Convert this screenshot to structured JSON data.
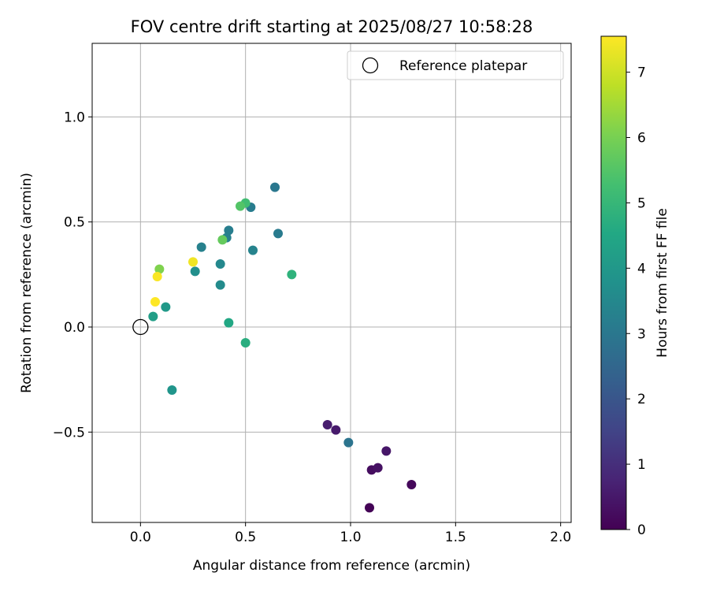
{
  "chart_data": {
    "type": "scatter",
    "title": "FOV centre drift starting at 2025/08/27 10:58:28",
    "xlabel": "Angular distance from reference (arcmin)",
    "ylabel": "Rotation from reference (arcmin)",
    "xlim": [
      -0.23,
      2.05
    ],
    "ylim": [
      -0.93,
      1.35
    ],
    "xticks": [
      0.0,
      0.5,
      1.0,
      1.5,
      2.0
    ],
    "xtick_labels": [
      "0.0",
      "0.5",
      "1.0",
      "1.5",
      "2.0"
    ],
    "yticks": [
      -0.5,
      0.0,
      0.5,
      1.0
    ],
    "ytick_labels": [
      "−0.5",
      "0.0",
      "0.5",
      "1.0"
    ],
    "grid": true,
    "legend": {
      "placement": "top-right",
      "entries": [
        {
          "label": "Reference platepar",
          "marker": "open-circle",
          "color": "#000000"
        }
      ]
    },
    "reference_point": {
      "x": 0.0,
      "y": 0.0
    },
    "colorbar": {
      "label": "Hours from first FF file",
      "min": 0,
      "max": 7.55,
      "ticks": [
        0,
        1,
        2,
        3,
        4,
        5,
        6,
        7
      ],
      "tick_labels": [
        "0",
        "1",
        "2",
        "3",
        "4",
        "5",
        "6",
        "7"
      ],
      "colormap": "viridis"
    },
    "points": [
      {
        "x": 1.09,
        "y": -0.86,
        "hours": 0.05
      },
      {
        "x": 1.29,
        "y": -0.75,
        "hours": 0.15
      },
      {
        "x": 1.1,
        "y": -0.68,
        "hours": 0.25
      },
      {
        "x": 1.13,
        "y": -0.67,
        "hours": 0.35
      },
      {
        "x": 1.17,
        "y": -0.59,
        "hours": 0.45
      },
      {
        "x": 0.93,
        "y": -0.49,
        "hours": 0.55
      },
      {
        "x": 0.89,
        "y": -0.465,
        "hours": 0.6
      },
      {
        "x": 0.99,
        "y": -0.55,
        "hours": 2.9
      },
      {
        "x": 0.64,
        "y": 0.665,
        "hours": 3.0
      },
      {
        "x": 0.655,
        "y": 0.445,
        "hours": 3.1
      },
      {
        "x": 0.525,
        "y": 0.57,
        "hours": 3.15
      },
      {
        "x": 0.42,
        "y": 0.46,
        "hours": 3.2
      },
      {
        "x": 0.41,
        "y": 0.425,
        "hours": 3.25
      },
      {
        "x": 0.29,
        "y": 0.38,
        "hours": 3.3
      },
      {
        "x": 0.535,
        "y": 0.365,
        "hours": 3.35
      },
      {
        "x": 0.38,
        "y": 0.3,
        "hours": 3.5
      },
      {
        "x": 0.38,
        "y": 0.2,
        "hours": 3.6
      },
      {
        "x": 0.26,
        "y": 0.265,
        "hours": 3.7
      },
      {
        "x": 0.15,
        "y": -0.3,
        "hours": 3.9
      },
      {
        "x": 0.12,
        "y": 0.095,
        "hours": 4.05
      },
      {
        "x": 0.06,
        "y": 0.05,
        "hours": 4.2
      },
      {
        "x": 0.42,
        "y": 0.02,
        "hours": 4.5
      },
      {
        "x": 0.5,
        "y": -0.075,
        "hours": 4.7
      },
      {
        "x": 0.72,
        "y": 0.25,
        "hours": 4.85
      },
      {
        "x": 0.5,
        "y": 0.59,
        "hours": 5.2
      },
      {
        "x": 0.475,
        "y": 0.575,
        "hours": 5.5
      },
      {
        "x": 0.39,
        "y": 0.415,
        "hours": 5.75
      },
      {
        "x": 0.09,
        "y": 0.275,
        "hours": 6.1
      },
      {
        "x": 0.25,
        "y": 0.31,
        "hours": 7.4
      },
      {
        "x": 0.08,
        "y": 0.24,
        "hours": 7.5
      },
      {
        "x": 0.07,
        "y": 0.12,
        "hours": 7.55
      }
    ]
  }
}
